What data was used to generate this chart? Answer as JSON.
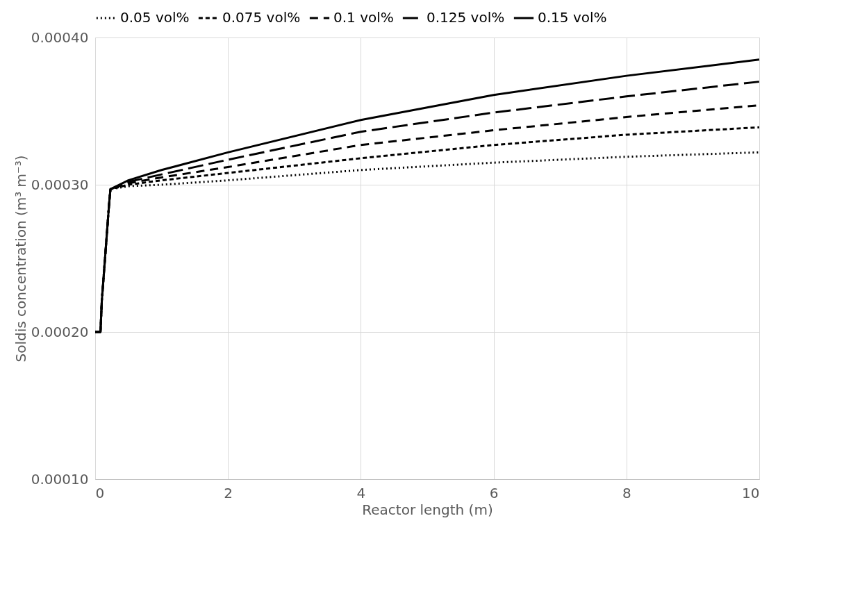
{
  "chart_data": {
    "type": "line",
    "xlabel": "Reactor length (m)",
    "ylabel": "Soldis concentration (m³ m⁻³)",
    "x": [
      0,
      0.08,
      0.1,
      0.21,
      0.23,
      0.5,
      1,
      2,
      4,
      6,
      8,
      10
    ],
    "xlim": [
      0,
      10
    ],
    "xticks": [
      0,
      2,
      4,
      6,
      8,
      10
    ],
    "ylim": [
      0.0001,
      0.0004
    ],
    "yticks": [
      {
        "value": 0.0001,
        "label": "0.00010"
      },
      {
        "value": 0.0002,
        "label": "0.00020"
      },
      {
        "value": 0.0003,
        "label": "0.00030"
      },
      {
        "value": 0.0004,
        "label": "0.00040"
      }
    ],
    "grid": true,
    "legend": "top",
    "marker": "none",
    "series": [
      {
        "name": "0.05 vol%",
        "color": "#000000",
        "line_style": "dotted",
        "values": [
          0.0002,
          0.0002,
          0.000221,
          0.000287,
          0.000297,
          0.000299,
          0.0003,
          0.000303,
          0.00031,
          0.000315,
          0.000319,
          0.000322
        ]
      },
      {
        "name": "0.075 vol%",
        "color": "#000000",
        "line_style": "dashed",
        "values": [
          0.0002,
          0.0002,
          0.000221,
          0.000287,
          0.000297,
          0.0003,
          0.000303,
          0.000308,
          0.000318,
          0.000327,
          0.000334,
          0.000339
        ]
      },
      {
        "name": "0.1 vol%",
        "color": "#000000",
        "line_style": "dashed",
        "values": [
          0.0002,
          0.0002,
          0.000221,
          0.000287,
          0.000297,
          0.000301,
          0.000305,
          0.000312,
          0.000327,
          0.000337,
          0.000346,
          0.000354
        ]
      },
      {
        "name": "0.125 vol%",
        "color": "#000000",
        "line_style": "dashed",
        "values": [
          0.0002,
          0.0002,
          0.000221,
          0.000287,
          0.000297,
          0.000302,
          0.000307,
          0.000317,
          0.000336,
          0.000349,
          0.00036,
          0.00037
        ]
      },
      {
        "name": "0.15 vol%",
        "color": "#000000",
        "line_style": "solid",
        "values": [
          0.0002,
          0.0002,
          0.000221,
          0.000287,
          0.000297,
          0.000303,
          0.00031,
          0.000322,
          0.000344,
          0.000361,
          0.000374,
          0.000385
        ]
      }
    ]
  }
}
